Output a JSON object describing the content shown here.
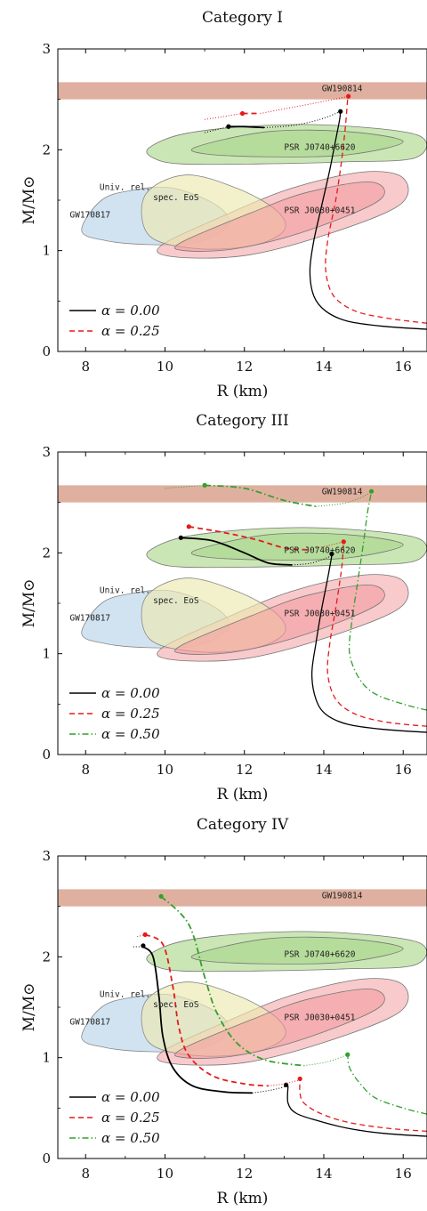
{
  "chart_data": [
    {
      "type": "line",
      "title": "Category I",
      "xlabel": "R (km)",
      "ylabel": "M/M⊙",
      "xlim": [
        7.3,
        16.6
      ],
      "ylim": [
        0,
        3
      ],
      "xticks": [
        "8",
        "10",
        "12",
        "14",
        "16"
      ],
      "yticks": [
        "0",
        "1",
        "2",
        "3"
      ],
      "annotations": [
        "GW190814",
        "PSR J0740+6620",
        "PSR J0030+0451",
        "GW170817",
        "Univ. rel.",
        "spec. EoS"
      ],
      "legend": [
        "α = 0.00",
        "α = 0.25"
      ],
      "series": [
        {
          "name": "α = 0.00",
          "color": "#000000",
          "style": "solid",
          "points": [
            [
              16.6,
              0.22
            ],
            [
              15.5,
              0.25
            ],
            [
              14.6,
              0.3
            ],
            [
              14.05,
              0.4
            ],
            [
              13.75,
              0.55
            ],
            [
              13.65,
              0.8
            ],
            [
              13.75,
              1.1
            ],
            [
              13.95,
              1.45
            ],
            [
              14.15,
              1.8
            ],
            [
              14.3,
              2.1
            ],
            [
              14.4,
              2.3
            ],
            [
              14.42,
              2.38
            ]
          ],
          "dotted": [
            [
              12.5,
              2.22
            ],
            [
              13.2,
              2.24
            ],
            [
              13.9,
              2.3
            ],
            [
              14.42,
              2.38
            ]
          ],
          "branch": [
            [
              11.6,
              2.23
            ],
            [
              12.0,
              2.23
            ],
            [
              12.5,
              2.22
            ]
          ],
          "dotted2": [
            [
              11.0,
              2.17
            ],
            [
              11.6,
              2.23
            ]
          ],
          "max_markers": [
            [
              14.42,
              2.38
            ],
            [
              11.6,
              2.23
            ]
          ]
        },
        {
          "name": "α = 0.25",
          "color": "#e41a1c",
          "style": "dashed",
          "points": [
            [
              16.6,
              0.28
            ],
            [
              15.6,
              0.33
            ],
            [
              14.8,
              0.4
            ],
            [
              14.25,
              0.55
            ],
            [
              14.05,
              0.8
            ],
            [
              14.1,
              1.1
            ],
            [
              14.3,
              1.5
            ],
            [
              14.45,
              1.9
            ],
            [
              14.55,
              2.25
            ],
            [
              14.6,
              2.5
            ],
            [
              14.62,
              2.53
            ]
          ],
          "dotted": [
            [
              12.4,
              2.36
            ],
            [
              13.2,
              2.42
            ],
            [
              14.0,
              2.48
            ],
            [
              14.62,
              2.53
            ]
          ],
          "branch": [
            [
              11.95,
              2.36
            ],
            [
              12.4,
              2.36
            ]
          ],
          "dotted2": [
            [
              11.0,
              2.3
            ],
            [
              11.95,
              2.36
            ]
          ],
          "max_markers": [
            [
              14.62,
              2.53
            ],
            [
              11.95,
              2.36
            ]
          ]
        }
      ]
    },
    {
      "type": "line",
      "title": "Category III",
      "xlabel": "R (km)",
      "ylabel": "M/M⊙",
      "xlim": [
        7.3,
        16.6
      ],
      "ylim": [
        0,
        3
      ],
      "xticks": [
        "8",
        "10",
        "12",
        "14",
        "16"
      ],
      "yticks": [
        "0",
        "1",
        "2",
        "3"
      ],
      "annotations": [
        "GW190814",
        "PSR J0740+6620",
        "PSR J0030+0451",
        "GW170817",
        "Univ. rel.",
        "spec. EoS"
      ],
      "legend": [
        "α = 0.00",
        "α = 0.25",
        "α = 0.50"
      ],
      "series": [
        {
          "name": "α = 0.00",
          "color": "#000000",
          "style": "solid",
          "points": [
            [
              16.6,
              0.22
            ],
            [
              15.5,
              0.25
            ],
            [
              14.6,
              0.3
            ],
            [
              14.05,
              0.4
            ],
            [
              13.8,
              0.55
            ],
            [
              13.7,
              0.8
            ],
            [
              13.8,
              1.1
            ],
            [
              13.95,
              1.45
            ],
            [
              14.1,
              1.75
            ],
            [
              14.2,
              1.97
            ]
          ],
          "dotted": [
            [
              13.2,
              1.88
            ],
            [
              13.7,
              1.9
            ],
            [
              14.2,
              1.97
            ]
          ],
          "branch": [
            [
              10.4,
              2.15
            ],
            [
              11.2,
              2.12
            ],
            [
              12.0,
              2.0
            ],
            [
              12.6,
              1.9
            ],
            [
              13.2,
              1.88
            ]
          ],
          "max_markers": [
            [
              14.2,
              1.99
            ],
            [
              10.4,
              2.15
            ]
          ]
        },
        {
          "name": "α = 0.25",
          "color": "#e41a1c",
          "style": "dashed",
          "points": [
            [
              16.6,
              0.28
            ],
            [
              15.6,
              0.32
            ],
            [
              14.8,
              0.4
            ],
            [
              14.3,
              0.55
            ],
            [
              14.1,
              0.8
            ],
            [
              14.15,
              1.1
            ],
            [
              14.3,
              1.45
            ],
            [
              14.45,
              1.85
            ],
            [
              14.5,
              2.1
            ]
          ],
          "dotted": [
            [
              13.6,
              2.03
            ],
            [
              14.1,
              2.07
            ],
            [
              14.5,
              2.11
            ]
          ],
          "branch": [
            [
              10.6,
              2.26
            ],
            [
              11.5,
              2.2
            ],
            [
              12.3,
              2.13
            ],
            [
              13.0,
              2.05
            ],
            [
              13.6,
              2.03
            ]
          ],
          "max_markers": [
            [
              14.5,
              2.11
            ],
            [
              10.6,
              2.26
            ]
          ]
        },
        {
          "name": "α = 0.50",
          "color": "#33a02c",
          "style": "dashdot",
          "points": [
            [
              16.6,
              0.44
            ],
            [
              16.0,
              0.5
            ],
            [
              15.3,
              0.6
            ],
            [
              14.9,
              0.75
            ],
            [
              14.65,
              1.0
            ],
            [
              14.7,
              1.3
            ],
            [
              14.85,
              1.7
            ],
            [
              15.0,
              2.1
            ],
            [
              15.1,
              2.4
            ],
            [
              15.2,
              2.6
            ]
          ],
          "branch": [
            [
              11.0,
              2.67
            ],
            [
              12.0,
              2.64
            ],
            [
              13.0,
              2.52
            ],
            [
              13.8,
              2.46
            ]
          ],
          "dotted": [
            [
              13.8,
              2.46
            ],
            [
              14.6,
              2.5
            ],
            [
              15.2,
              2.6
            ]
          ],
          "dotted2": [
            [
              10.0,
              2.64
            ],
            [
              11.0,
              2.67
            ]
          ],
          "max_markers": [
            [
              15.2,
              2.61
            ],
            [
              11.0,
              2.67
            ]
          ]
        }
      ]
    },
    {
      "type": "line",
      "title": "Category IV",
      "xlabel": "R (km)",
      "ylabel": "M/M⊙",
      "xlim": [
        7.3,
        16.6
      ],
      "ylim": [
        0,
        3
      ],
      "xticks": [
        "8",
        "10",
        "12",
        "14",
        "16"
      ],
      "yticks": [
        "0",
        "1",
        "2",
        "3"
      ],
      "annotations": [
        "GW190814",
        "PSR J0740+6620",
        "PSR J0030+0451",
        "GW170817",
        "Univ. rel.",
        "spec. EoS"
      ],
      "legend": [
        "α = 0.00",
        "α = 0.25",
        "α = 0.50"
      ],
      "series": [
        {
          "name": "α = 0.00",
          "color": "#000000",
          "style": "solid",
          "points": [
            [
              16.6,
              0.22
            ],
            [
              15.5,
              0.25
            ],
            [
              14.6,
              0.3
            ],
            [
              13.8,
              0.38
            ],
            [
              13.3,
              0.45
            ],
            [
              13.1,
              0.55
            ],
            [
              13.1,
              0.72
            ]
          ],
          "dotted": [
            [
              12.2,
              0.65
            ],
            [
              12.7,
              0.68
            ],
            [
              13.1,
              0.72
            ]
          ],
          "branch": [
            [
              9.45,
              2.1
            ],
            [
              9.7,
              2.0
            ],
            [
              9.85,
              1.6
            ],
            [
              9.95,
              1.2
            ],
            [
              10.2,
              0.9
            ],
            [
              10.7,
              0.72
            ],
            [
              11.5,
              0.66
            ],
            [
              12.2,
              0.65
            ]
          ],
          "dotted2": [
            [
              9.2,
              2.1
            ],
            [
              9.45,
              2.1
            ]
          ],
          "max_markers": [
            [
              13.05,
              0.73
            ],
            [
              9.45,
              2.11
            ]
          ]
        },
        {
          "name": "α = 0.25",
          "color": "#e41a1c",
          "style": "dashed",
          "points": [
            [
              16.6,
              0.27
            ],
            [
              15.6,
              0.3
            ],
            [
              14.6,
              0.36
            ],
            [
              13.9,
              0.45
            ],
            [
              13.5,
              0.55
            ],
            [
              13.4,
              0.65
            ],
            [
              13.4,
              0.78
            ]
          ],
          "dotted": [
            [
              12.6,
              0.72
            ],
            [
              13.0,
              0.74
            ],
            [
              13.4,
              0.78
            ]
          ],
          "branch": [
            [
              9.5,
              2.22
            ],
            [
              9.95,
              2.12
            ],
            [
              10.2,
              1.7
            ],
            [
              10.35,
              1.3
            ],
            [
              10.6,
              1.02
            ],
            [
              11.2,
              0.82
            ],
            [
              12.0,
              0.74
            ],
            [
              12.6,
              0.72
            ]
          ],
          "dotted2": [
            [
              9.3,
              2.2
            ],
            [
              9.5,
              2.22
            ]
          ],
          "max_markers": [
            [
              13.4,
              0.79
            ],
            [
              9.5,
              2.22
            ]
          ]
        },
        {
          "name": "α = 0.50",
          "color": "#33a02c",
          "style": "dashdot",
          "points": [
            [
              16.6,
              0.44
            ],
            [
              16.0,
              0.5
            ],
            [
              15.3,
              0.6
            ],
            [
              14.9,
              0.75
            ],
            [
              14.65,
              0.9
            ],
            [
              14.6,
              1.03
            ]
          ],
          "dotted": [
            [
              13.5,
              0.92
            ],
            [
              14.1,
              0.96
            ],
            [
              14.6,
              1.03
            ]
          ],
          "branch": [
            [
              9.9,
              2.6
            ],
            [
              10.6,
              2.32
            ],
            [
              11.0,
              1.8
            ],
            [
              11.3,
              1.45
            ],
            [
              11.8,
              1.15
            ],
            [
              12.5,
              0.98
            ],
            [
              13.5,
              0.92
            ]
          ],
          "max_markers": [
            [
              14.6,
              1.03
            ],
            [
              9.9,
              2.6
            ]
          ]
        }
      ]
    }
  ]
}
